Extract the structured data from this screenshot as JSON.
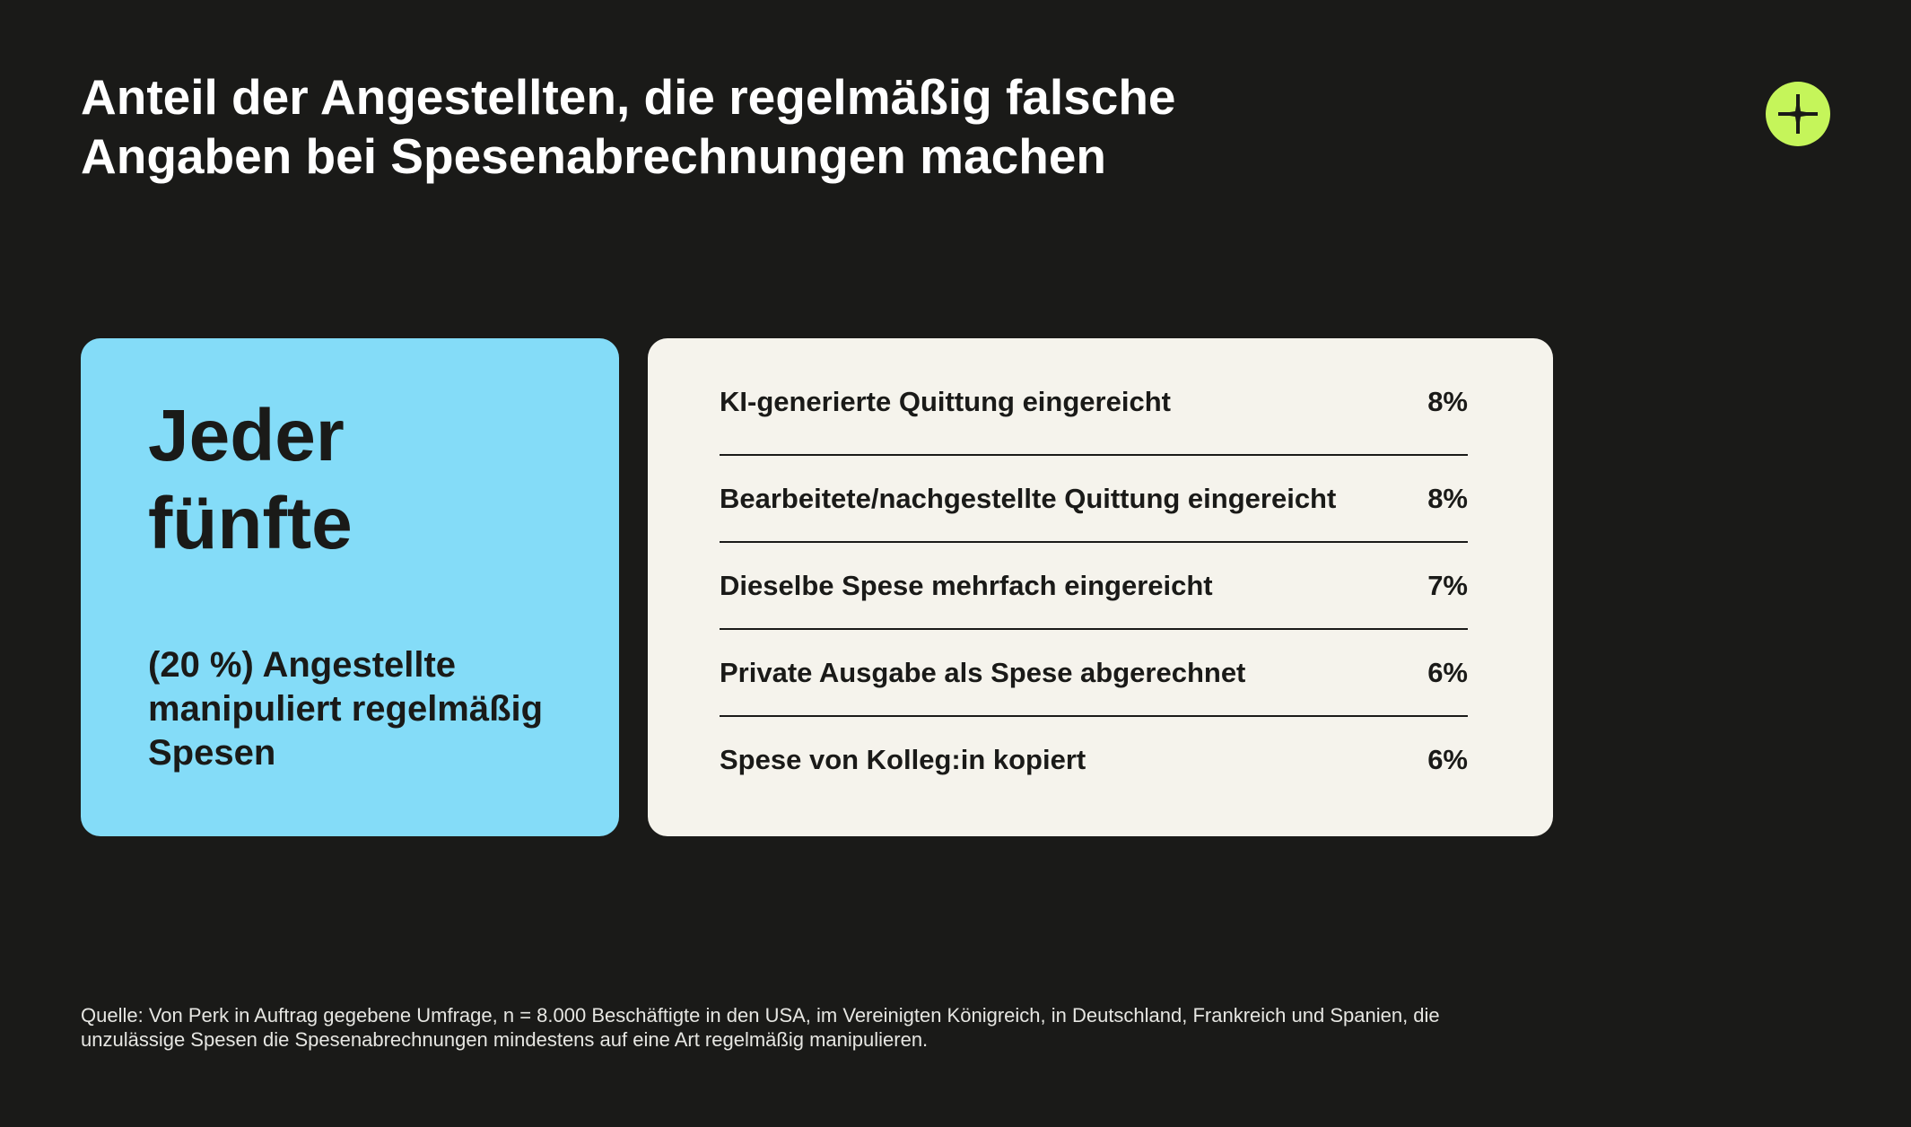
{
  "title": {
    "line1": "Anteil der Angestellten, die regelmäßig falsche",
    "line2": "Angaben bei Spesenabrechnungen machen"
  },
  "brand": {
    "icon": "plus-cross-icon",
    "color": "#c5f55a"
  },
  "highlight_card": {
    "headline_line1": "Jeder",
    "headline_line2": "fünfte",
    "sub_line1": "(20 %) Angestellte",
    "sub_line2": "manipuliert regelmäßig",
    "sub_line3": "Spesen",
    "color": "#84dcf8"
  },
  "stats": [
    {
      "label": "KI-generierte Quittung eingereicht",
      "value": "8%"
    },
    {
      "label": "Bearbeitete/nachgestellte Quittung eingereicht",
      "value": "8%"
    },
    {
      "label": "Dieselbe Spese mehrfach eingereicht",
      "value": "7%"
    },
    {
      "label": "Private Ausgabe als Spese abgerechnet",
      "value": "6%"
    },
    {
      "label": "Spese von Kolleg:in kopiert",
      "value": "6%"
    }
  ],
  "footnote": {
    "line1": "Quelle: Von Perk in Auftrag gegebene Umfrage, n = 8.000 Beschäftigte in den USA, im Vereinigten Königreich, in Deutschland, Frankreich und Spanien, die",
    "line2": "unzulässige Spesen die Spesenabrechnungen mindestens auf eine Art regelmäßig manipulieren."
  },
  "colors": {
    "background": "#1a1a18",
    "card_light": "#f5f3ec"
  }
}
